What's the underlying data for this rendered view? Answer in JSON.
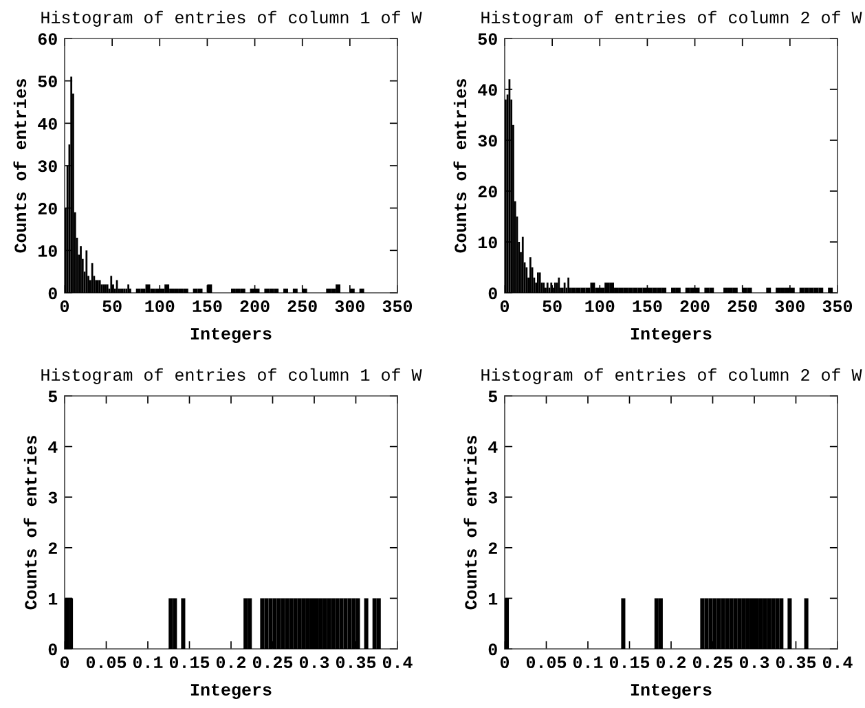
{
  "chart_data": [
    {
      "type": "histogram",
      "title": "Histogram of entries of column 1 of W",
      "xlabel": "Integers",
      "ylabel": "Counts of entries",
      "color": "#000000",
      "bins": [
        0,
        2,
        4,
        6,
        8,
        10,
        12,
        14,
        16,
        18,
        20,
        22,
        24,
        26,
        28,
        30,
        32,
        34,
        36,
        38,
        40,
        42,
        44,
        46,
        48,
        50,
        52,
        54,
        56,
        58,
        60,
        62,
        64,
        66,
        68,
        70,
        75,
        80,
        85,
        90,
        95,
        100,
        105,
        110,
        115,
        120,
        125,
        130,
        135,
        140,
        145,
        150,
        155,
        175,
        180,
        185,
        190,
        195,
        200,
        205,
        210,
        215,
        220,
        225,
        230,
        235,
        240,
        245,
        250,
        255,
        275,
        280,
        285,
        290,
        300,
        305,
        310,
        315
      ],
      "values": [
        20,
        30,
        35,
        51,
        47,
        19,
        13,
        9,
        11,
        8,
        5,
        10,
        4,
        3,
        7,
        4,
        3,
        3,
        3,
        2,
        2,
        2,
        2,
        1,
        4,
        2,
        1,
        3,
        1,
        1,
        1,
        1,
        1,
        2,
        1,
        0,
        1,
        1,
        2,
        1,
        1,
        1,
        2,
        1,
        1,
        1,
        1,
        0,
        1,
        1,
        0,
        2,
        0,
        1,
        1,
        1,
        0,
        1,
        1,
        0,
        1,
        1,
        1,
        0,
        1,
        0,
        1,
        0,
        1,
        0,
        1,
        1,
        2,
        0,
        1,
        0,
        1
      ],
      "xlim": [
        0,
        350
      ],
      "ylim": [
        0,
        60
      ],
      "xticks": [
        0,
        50,
        100,
        150,
        200,
        250,
        300,
        350
      ],
      "yticks": [
        0,
        10,
        20,
        30,
        40,
        50,
        60
      ]
    },
    {
      "type": "histogram",
      "title": "Histogram of entries of column 2 of W",
      "xlabel": "Integers",
      "ylabel": "Counts of entries",
      "color": "#000000",
      "bins": [
        0,
        2,
        4,
        6,
        8,
        10,
        12,
        14,
        16,
        18,
        20,
        22,
        24,
        26,
        28,
        30,
        32,
        34,
        36,
        38,
        40,
        42,
        44,
        46,
        48,
        50,
        52,
        54,
        56,
        58,
        60,
        62,
        64,
        66,
        68,
        70,
        75,
        80,
        85,
        90,
        95,
        100,
        105,
        110,
        115,
        120,
        125,
        130,
        135,
        140,
        145,
        150,
        155,
        160,
        165,
        170,
        175,
        180,
        185,
        190,
        195,
        200,
        205,
        210,
        215,
        220,
        230,
        235,
        240,
        245,
        250,
        255,
        260,
        275,
        280,
        285,
        290,
        295,
        300,
        305,
        310,
        315,
        320,
        325,
        330,
        335,
        340,
        345
      ],
      "values": [
        38,
        39,
        42,
        38,
        33,
        18,
        15,
        10,
        8,
        11,
        6,
        5,
        3,
        7,
        5,
        3,
        2,
        4,
        4,
        2,
        2,
        1,
        2,
        1,
        2,
        1,
        2,
        2,
        3,
        1,
        1,
        2,
        1,
        3,
        1,
        1,
        1,
        1,
        1,
        2,
        1,
        1,
        2,
        2,
        1,
        1,
        1,
        1,
        1,
        1,
        1,
        1,
        1,
        1,
        1,
        0,
        1,
        1,
        0,
        1,
        1,
        1,
        0,
        1,
        1,
        0,
        1,
        1,
        1,
        0,
        1,
        1,
        0,
        1,
        0,
        1,
        1,
        1,
        1,
        0,
        1,
        1,
        1,
        1,
        1,
        0,
        1
      ],
      "xlim": [
        0,
        350
      ],
      "ylim": [
        0,
        50
      ],
      "xticks": [
        0,
        50,
        100,
        150,
        200,
        250,
        300,
        350
      ],
      "yticks": [
        0,
        10,
        20,
        30,
        40,
        50
      ]
    },
    {
      "type": "histogram",
      "title": "Histogram of entries of column 1 of W",
      "xlabel": "Integers",
      "ylabel": "Counts of entries",
      "color": "#000000",
      "bins": [
        0,
        0.005,
        0.01,
        0.015,
        0.02,
        0.025,
        0.03,
        0.035,
        0.04,
        0.045,
        0.05,
        0.055,
        0.06,
        0.065,
        0.07,
        0.075,
        0.08,
        0.085,
        0.09,
        0.095,
        0.1,
        0.105,
        0.11,
        0.115,
        0.12,
        0.125,
        0.13,
        0.135,
        0.14,
        0.145,
        0.15,
        0.155,
        0.16,
        0.165,
        0.17,
        0.175,
        0.18,
        0.185,
        0.19,
        0.195,
        0.2,
        0.205,
        0.21,
        0.215,
        0.22,
        0.225,
        0.23,
        0.235,
        0.24,
        0.245,
        0.25,
        0.255,
        0.26,
        0.265,
        0.27,
        0.275,
        0.28,
        0.285,
        0.29,
        0.295,
        0.3,
        0.305,
        0.31,
        0.315,
        0.32,
        0.325,
        0.33,
        0.335,
        0.34,
        0.345,
        0.35,
        0.355,
        0.36,
        0.365,
        0.37,
        0.375,
        0.38,
        0.385,
        0.39,
        0.395,
        0.4
      ],
      "values": [
        1,
        1,
        0,
        0,
        0,
        0,
        0,
        0,
        0,
        0,
        0,
        0,
        0,
        0,
        0,
        0,
        0,
        0,
        0,
        0,
        0,
        0,
        0,
        0,
        0,
        1,
        1,
        0,
        1,
        0,
        0,
        0,
        0,
        0,
        0,
        0,
        0,
        0,
        0,
        0,
        0,
        0,
        0,
        1,
        1,
        0,
        0,
        1,
        1,
        1,
        1,
        1,
        1,
        1,
        1,
        1,
        1,
        1,
        1,
        1,
        1,
        1,
        1,
        1,
        1,
        1,
        1,
        1,
        1,
        1,
        1,
        0,
        1,
        0,
        1,
        1,
        0,
        0,
        0,
        0
      ],
      "xlim": [
        0,
        0.4
      ],
      "ylim": [
        0,
        5
      ],
      "xticks": [
        0,
        0.05,
        0.1,
        0.15,
        0.2,
        0.25,
        0.3,
        0.35,
        0.4
      ],
      "yticks": [
        0,
        1,
        2,
        3,
        4,
        5
      ]
    },
    {
      "type": "histogram",
      "title": "Histogram of entries of column 2 of W",
      "xlabel": "Integers",
      "ylabel": "Counts of entries",
      "color": "#000000",
      "bins": [
        0,
        0.005,
        0.01,
        0.015,
        0.02,
        0.025,
        0.03,
        0.035,
        0.04,
        0.045,
        0.05,
        0.055,
        0.06,
        0.065,
        0.07,
        0.075,
        0.08,
        0.085,
        0.09,
        0.095,
        0.1,
        0.105,
        0.11,
        0.115,
        0.12,
        0.125,
        0.13,
        0.135,
        0.14,
        0.145,
        0.15,
        0.155,
        0.16,
        0.165,
        0.17,
        0.175,
        0.18,
        0.185,
        0.19,
        0.195,
        0.2,
        0.205,
        0.21,
        0.215,
        0.22,
        0.225,
        0.23,
        0.235,
        0.24,
        0.245,
        0.25,
        0.255,
        0.26,
        0.265,
        0.27,
        0.275,
        0.28,
        0.285,
        0.29,
        0.295,
        0.3,
        0.305,
        0.31,
        0.315,
        0.32,
        0.325,
        0.33,
        0.335,
        0.34,
        0.345,
        0.35,
        0.355,
        0.36,
        0.365,
        0.37,
        0.375,
        0.38,
        0.385,
        0.39,
        0.395,
        0.4
      ],
      "values": [
        1,
        0,
        0,
        0,
        0,
        0,
        0,
        0,
        0,
        0,
        0,
        0,
        0,
        0,
        0,
        0,
        0,
        0,
        0,
        0,
        0,
        0,
        0,
        0,
        0,
        0,
        0,
        0,
        1,
        0,
        0,
        0,
        0,
        0,
        0,
        0,
        1,
        1,
        0,
        0,
        0,
        0,
        0,
        0,
        0,
        0,
        0,
        1,
        1,
        1,
        1,
        1,
        1,
        1,
        1,
        1,
        1,
        1,
        1,
        1,
        1,
        1,
        1,
        1,
        1,
        1,
        1,
        0,
        1,
        0,
        0,
        0,
        1,
        0,
        0,
        0,
        0,
        0,
        0,
        0
      ],
      "xlim": [
        0,
        0.4
      ],
      "ylim": [
        0,
        5
      ],
      "xticks": [
        0,
        0.05,
        0.1,
        0.15,
        0.2,
        0.25,
        0.3,
        0.35,
        0.4
      ],
      "yticks": [
        0,
        1,
        2,
        3,
        4,
        5
      ]
    }
  ]
}
